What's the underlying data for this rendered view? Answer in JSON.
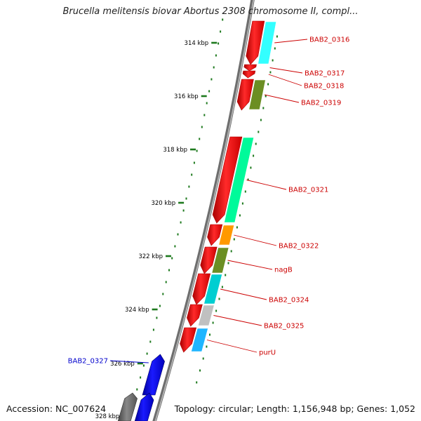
{
  "title": "Brucella melitensis biovar Abortus 2308 chromosome II, compl...",
  "accession_text": "Accession: NC_007624",
  "topology_text": "Topology: circular; Length: 1,156,948 bp; Genes: 1,052",
  "colors": {
    "backbone": "#8a8a8a",
    "tick": "#1e7a1e",
    "reverse_cds": "#ff0000",
    "forward_cds": "#0000ee",
    "forward_gray": "#666666",
    "label_red": "#cc0000",
    "label_blue": "#0000cc"
  },
  "ruler": {
    "ticks": [
      {
        "label": "314 kbp"
      },
      {
        "label": "316 kbp"
      },
      {
        "label": "318 kbp"
      },
      {
        "label": "320 kbp"
      },
      {
        "label": "322 kbp"
      },
      {
        "label": "324 kbp"
      },
      {
        "label": "326 kbp"
      },
      {
        "label": "328 kbp"
      }
    ]
  },
  "genes": [
    {
      "label": "BAB2_0316",
      "strand": "-",
      "cog_color": "#33ffff"
    },
    {
      "label": "BAB2_0317",
      "strand": "-",
      "cog_color": ""
    },
    {
      "label": "BAB2_0318",
      "strand": "-",
      "cog_color": ""
    },
    {
      "label": "BAB2_0319",
      "strand": "-",
      "cog_color": "#6b8e23"
    },
    {
      "label": "BAB2_0321",
      "strand": "-",
      "cog_color": "#00fa9a"
    },
    {
      "label": "BAB2_0322",
      "strand": "-",
      "cog_color": "#ff9900"
    },
    {
      "label": "nagB",
      "strand": "-",
      "cog_color": "#6b8e23"
    },
    {
      "label": "BAB2_0324",
      "strand": "-",
      "cog_color": "#00ced1"
    },
    {
      "label": "BAB2_0325",
      "strand": "-",
      "cog_color": "#c0c0c0"
    },
    {
      "label": "purU",
      "strand": "-",
      "cog_color": "#1fb5ff"
    },
    {
      "label": "BAB2_0327",
      "strand": "+",
      "cog_color": ""
    },
    {
      "label": "",
      "strand": "+",
      "cog_color": ""
    }
  ]
}
